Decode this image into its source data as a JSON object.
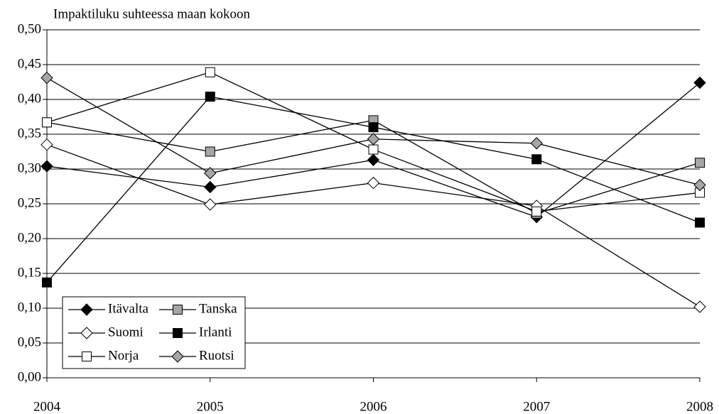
{
  "chart_data": {
    "type": "line",
    "title": "Impaktiluku suhteessa maan kokoon",
    "categories": [
      "2004",
      "2005",
      "2006",
      "2007",
      "2008"
    ],
    "ylim": [
      0,
      0.5
    ],
    "yticks": [
      {
        "value": 0,
        "label": "0,00"
      },
      {
        "value": 0.05,
        "label": "0,05"
      },
      {
        "value": 0.1,
        "label": "0,10"
      },
      {
        "value": 0.15,
        "label": "0,15"
      },
      {
        "value": 0.2,
        "label": "0,20"
      },
      {
        "value": 0.25,
        "label": "0,25"
      },
      {
        "value": 0.3,
        "label": "0,30"
      },
      {
        "value": 0.35,
        "label": "0,35"
      },
      {
        "value": 0.4,
        "label": "0,40"
      },
      {
        "value": 0.45,
        "label": "0,45"
      },
      {
        "value": 0.5,
        "label": "0,50"
      }
    ],
    "grid": true,
    "legend": "lower-left",
    "series": [
      {
        "name": "Itävalta",
        "color": "#000000",
        "marker": "diamond",
        "fill": "#000000",
        "values": [
          0.304,
          0.274,
          0.313,
          0.231,
          0.424
        ]
      },
      {
        "name": "Tanska",
        "color": "#000000",
        "marker": "square",
        "fill": "#a6a6a6",
        "values": [
          0.367,
          0.325,
          0.37,
          0.236,
          0.309
        ]
      },
      {
        "name": "Suomi",
        "color": "#000000",
        "marker": "diamond",
        "fill": "#ffffff",
        "values": [
          0.335,
          0.249,
          0.28,
          0.247,
          0.102
        ]
      },
      {
        "name": "Irlanti",
        "color": "#000000",
        "marker": "square",
        "fill": "#000000",
        "values": [
          0.137,
          0.404,
          0.36,
          0.314,
          0.223
        ]
      },
      {
        "name": "Norja",
        "color": "#000000",
        "marker": "square",
        "fill": "#ffffff",
        "values": [
          0.367,
          0.439,
          0.328,
          0.239,
          0.266
        ]
      },
      {
        "name": "Ruotsi",
        "color": "#000000",
        "marker": "diamond",
        "fill": "#a6a6a6",
        "values": [
          0.431,
          0.294,
          0.343,
          0.337,
          0.277
        ]
      }
    ]
  }
}
